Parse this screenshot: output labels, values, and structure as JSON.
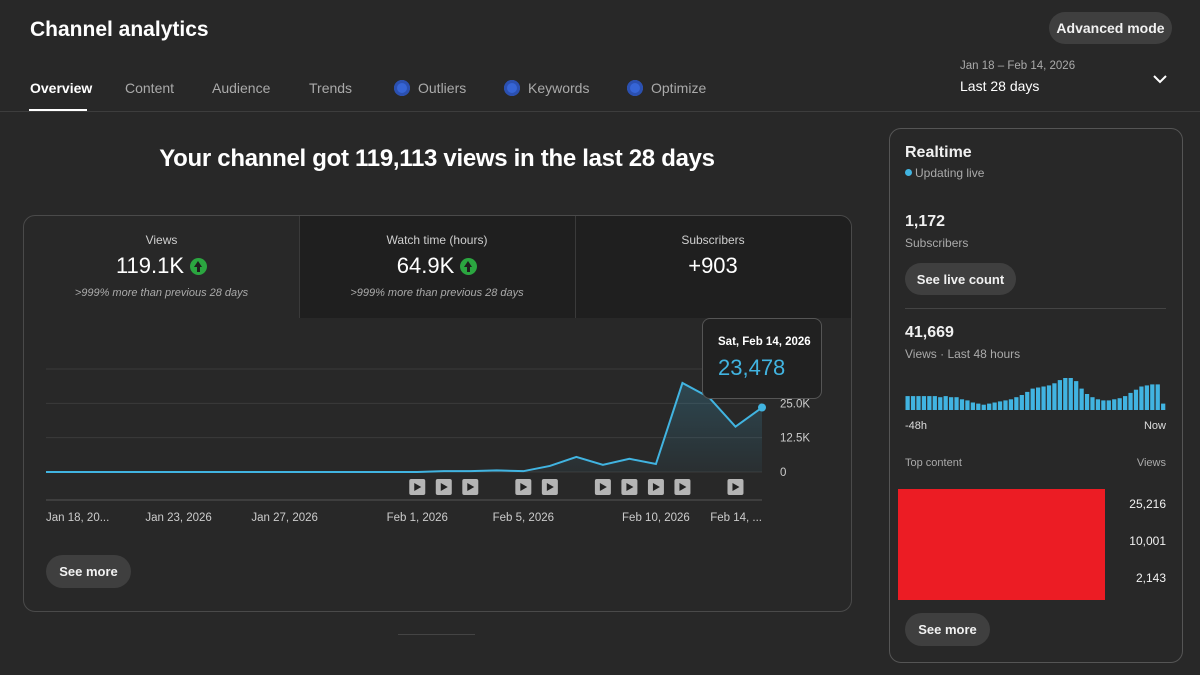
{
  "header": {
    "title": "Channel analytics",
    "advanced_mode": "Advanced mode",
    "tabs": [
      "Overview",
      "Content",
      "Audience",
      "Trends",
      "Outliers",
      "Keywords",
      "Optimize"
    ],
    "date_range": "Jan 18 – Feb 14, 2026",
    "period": "Last 28 days"
  },
  "headline": "Your channel got 119,113 views in the last 28 days",
  "metrics": [
    {
      "label": "Views",
      "value": "119.1K",
      "note": ">999% more than previous 28 days"
    },
    {
      "label": "Watch time (hours)",
      "value": "64.9K",
      "note": ">999% more than previous 28 days"
    },
    {
      "label": "Subscribers",
      "value": "+903"
    }
  ],
  "tooltip": {
    "date": "Sat, Feb 14, 2026",
    "value": "23,478"
  },
  "see_more": "See more",
  "chart_data": [
    {
      "type": "line",
      "color": "#41b4e1",
      "categories": [
        "Jan 18, 20...",
        null,
        null,
        null,
        null,
        "Jan 23, 2026",
        null,
        null,
        null,
        "Jan 27, 2026",
        null,
        null,
        null,
        null,
        "Feb 1, 2026",
        null,
        null,
        null,
        "Feb 5, 2026",
        null,
        null,
        null,
        null,
        "Feb 10, 2026",
        null,
        null,
        null,
        "Feb 14, ..."
      ],
      "values": [
        0,
        0,
        0,
        0,
        0,
        0,
        0,
        0,
        0,
        0,
        0,
        0,
        0,
        0,
        0,
        300,
        300,
        600,
        300,
        2200,
        5500,
        2600,
        4800,
        2900,
        32400,
        27200,
        16500,
        23478
      ],
      "ylim": [
        0,
        37500
      ],
      "yticks": [
        0,
        {
          "value": 12500,
          "label": "12.5K"
        },
        {
          "value": 25000,
          "label": "25.0K"
        }
      ],
      "grid": true
    },
    {
      "type": "bar",
      "color": "#41b4e1",
      "values": [
        760,
        760,
        760,
        760,
        760,
        760,
        700,
        760,
        700,
        700,
        585,
        525,
        410,
        350,
        290,
        350,
        410,
        470,
        525,
        585,
        700,
        820,
        990,
        1170,
        1230,
        1285,
        1345,
        1460,
        1635,
        1750,
        1750,
        1580,
        1170,
        875,
        700,
        585,
        525,
        525,
        585,
        645,
        760,
        935,
        1110,
        1285,
        1345,
        1400,
        1400,
        350
      ],
      "x_start_label": "-48h",
      "x_end_label": "Now"
    }
  ],
  "realtime": {
    "title": "Realtime",
    "status": "Updating live",
    "subscribers": "1,172",
    "subscribers_label": "Subscribers",
    "live_count": "See live count",
    "views": "41,669",
    "views_label": "Views · Last 48 hours",
    "top_content": "Top content",
    "views_header": "Views",
    "top_views": [
      "25,216",
      "10,001",
      "2,143"
    ],
    "see_more": "See more"
  }
}
